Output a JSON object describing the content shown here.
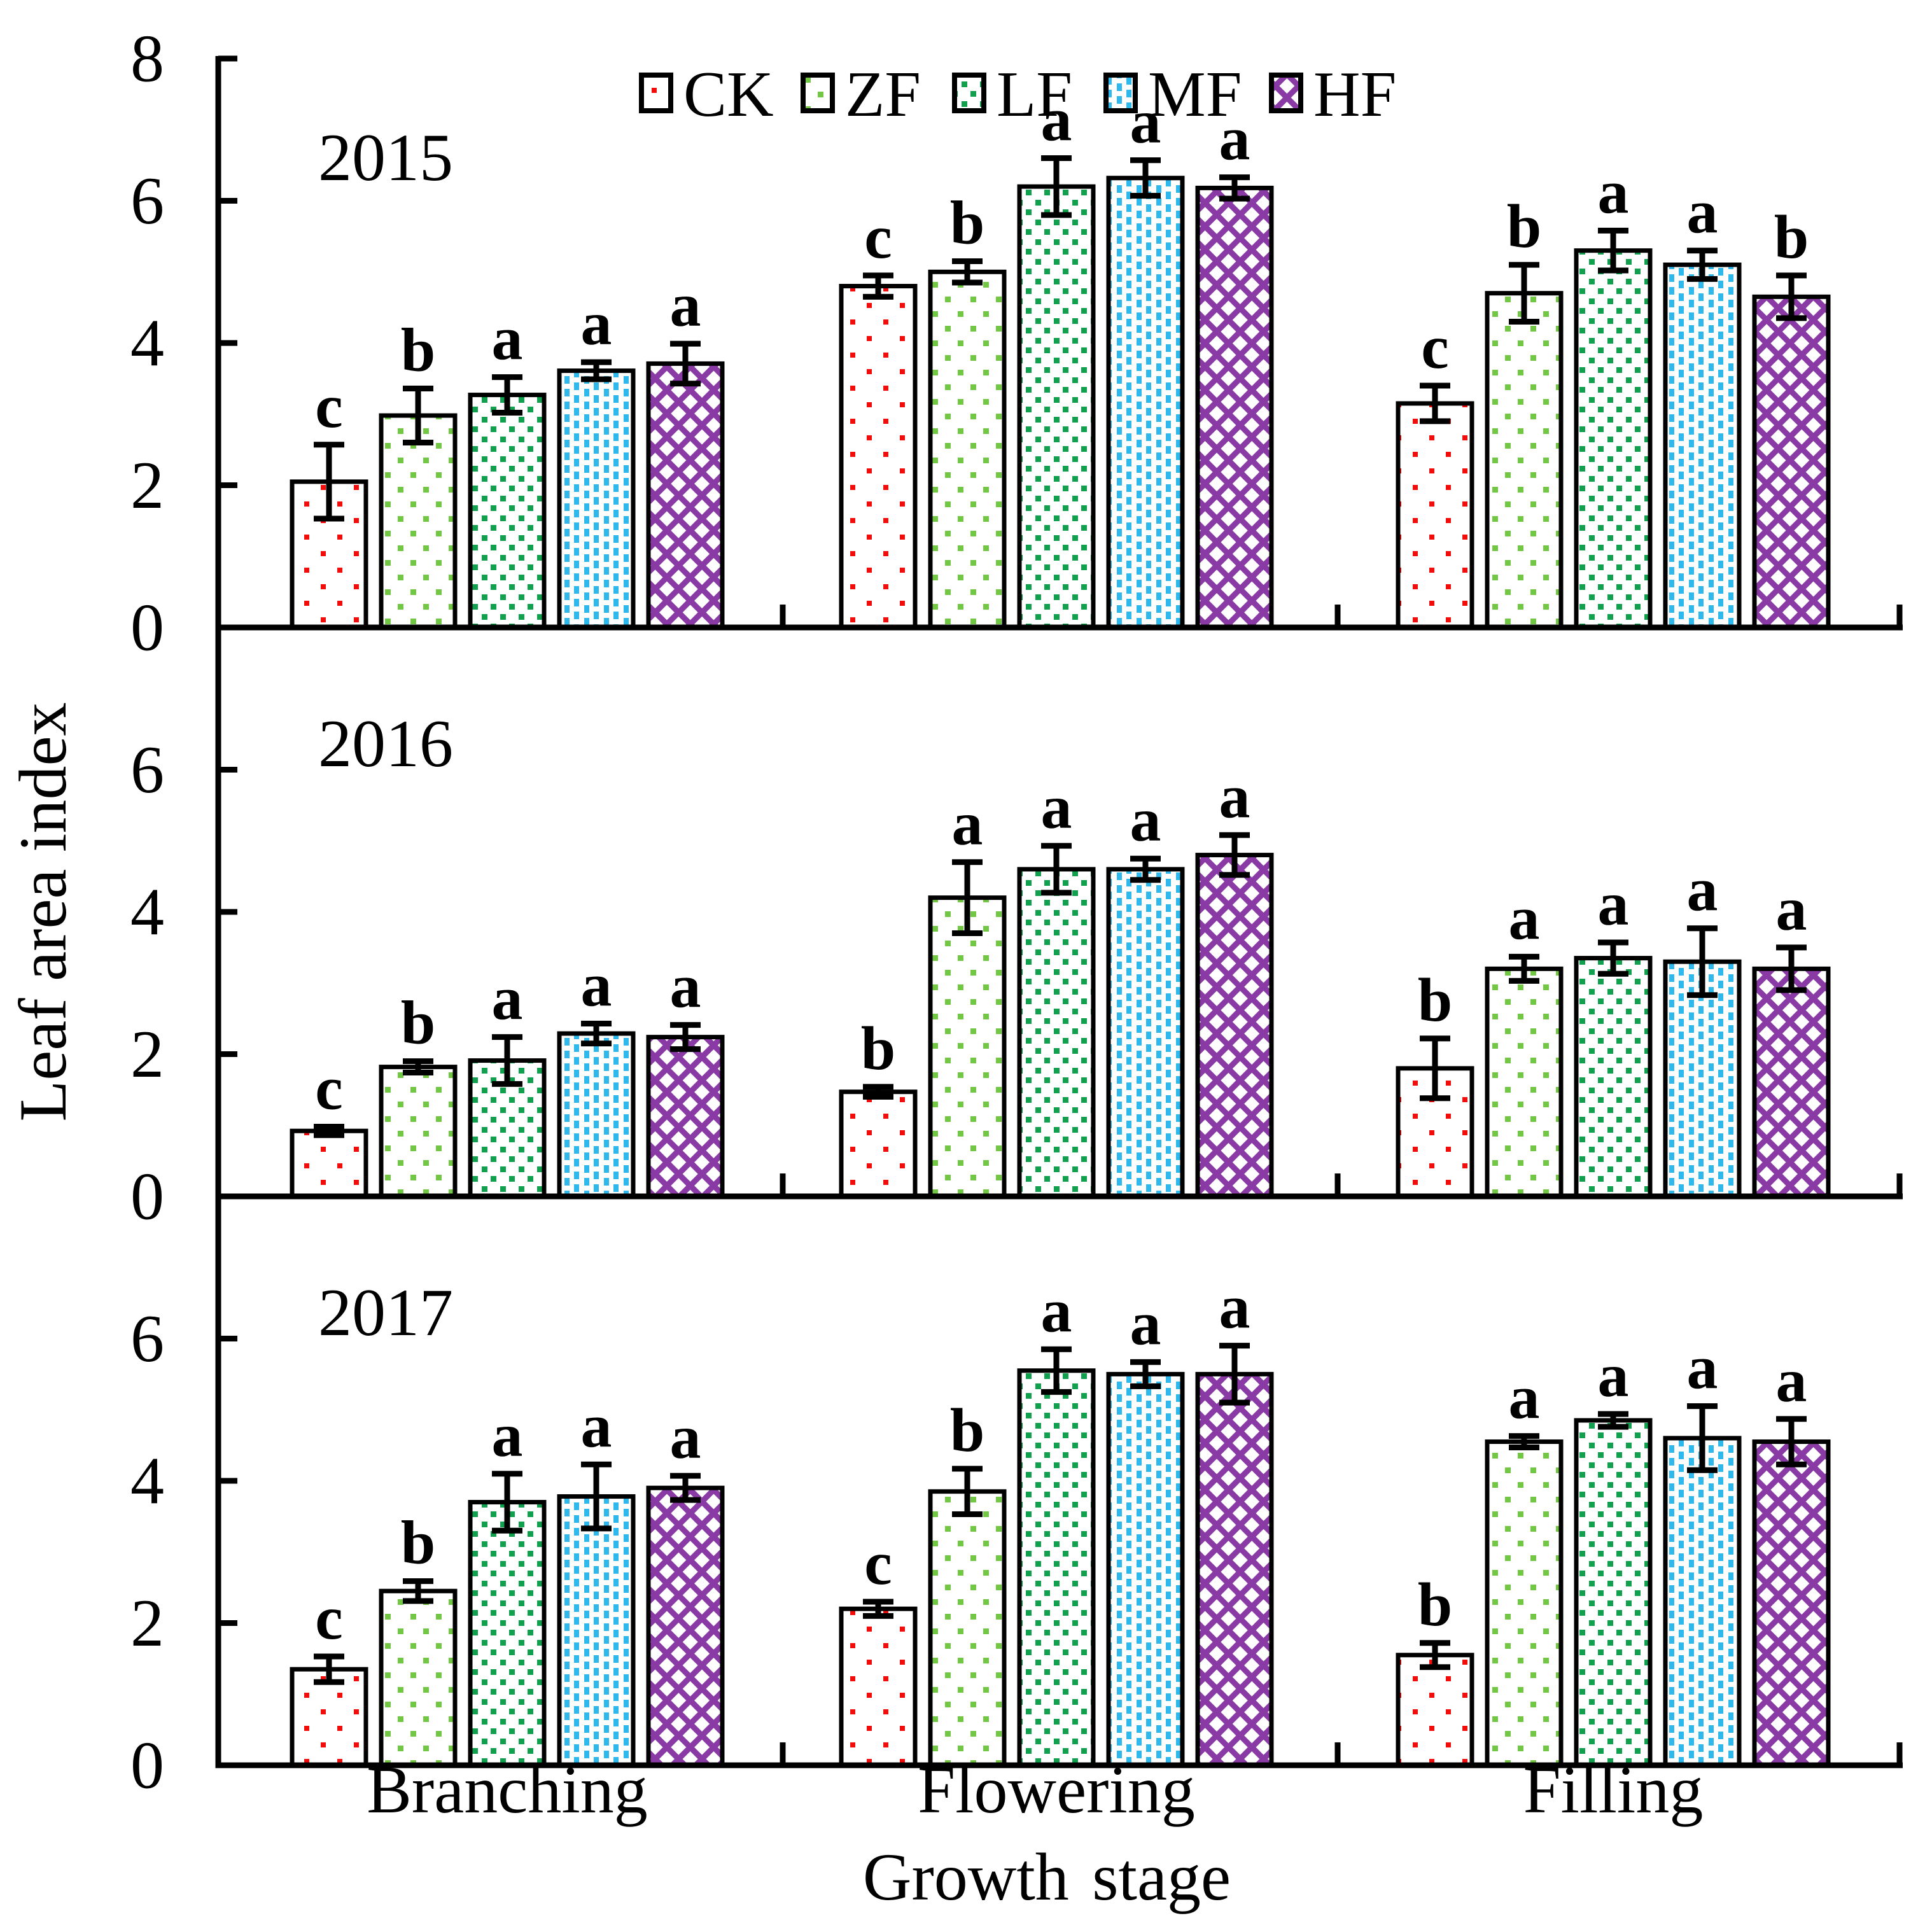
{
  "figure": {
    "background": "#ffffff",
    "ink": "#000000"
  },
  "axes": {
    "y_title": "Leaf area index",
    "x_title": "Growth  stage",
    "stage_labels": [
      "Branching",
      "Flowering",
      "Filling"
    ]
  },
  "chart_data": {
    "type": "bar",
    "title": "",
    "xlabel": "Growth stage",
    "ylabel": "Leaf area index",
    "categories": [
      "Branching",
      "Flowering",
      "Filling"
    ],
    "legend_position": "top-inside",
    "grid": false,
    "treatments": [
      {
        "name": "CK",
        "color": "#f20d0d",
        "pattern": "sparse-red-dots"
      },
      {
        "name": "ZF",
        "color": "#72c845",
        "pattern": "light-green-dots"
      },
      {
        "name": "LF",
        "color": "#11a04d",
        "pattern": "dense-green-dots"
      },
      {
        "name": "MF",
        "color": "#2fb8ec",
        "pattern": "blue-vertical-dashes"
      },
      {
        "name": "HF",
        "color": "#8a3aa5",
        "pattern": "purple-diagonal-weave"
      }
    ],
    "panels": [
      {
        "year": "2015",
        "ylim": [
          0,
          8
        ],
        "yticks": [
          0,
          2,
          4,
          6,
          8
        ],
        "series": [
          {
            "category": "Branching",
            "values": [
              2.05,
              2.98,
              3.27,
              3.61,
              3.71
            ],
            "errors": [
              0.52,
              0.38,
              0.25,
              0.12,
              0.28
            ],
            "letters": [
              "c",
              "b",
              "a",
              "a",
              "a"
            ]
          },
          {
            "category": "Flowering",
            "values": [
              4.8,
              5.0,
              6.2,
              6.32,
              6.18
            ],
            "errors": [
              0.15,
              0.15,
              0.4,
              0.25,
              0.15
            ],
            "letters": [
              "c",
              "b",
              "a",
              "a",
              "a"
            ]
          },
          {
            "category": "Filling",
            "values": [
              3.15,
              4.7,
              5.3,
              5.1,
              4.65
            ],
            "errors": [
              0.25,
              0.4,
              0.28,
              0.2,
              0.3
            ],
            "letters": [
              "c",
              "b",
              "a",
              "a",
              "b"
            ]
          }
        ]
      },
      {
        "year": "2016",
        "ylim": [
          0,
          8
        ],
        "yticks": [
          0,
          2,
          4,
          6
        ],
        "series": [
          {
            "category": "Branching",
            "values": [
              0.92,
              1.82,
              1.91,
              2.29,
              2.24
            ],
            "errors": [
              0.06,
              0.08,
              0.33,
              0.14,
              0.17
            ],
            "letters": [
              "c",
              "b",
              "a",
              "a",
              "a"
            ]
          },
          {
            "category": "Flowering",
            "values": [
              1.47,
              4.2,
              4.6,
              4.6,
              4.8
            ],
            "errors": [
              0.07,
              0.5,
              0.33,
              0.15,
              0.28
            ],
            "letters": [
              "b",
              "a",
              "a",
              "a",
              "a"
            ]
          },
          {
            "category": "Filling",
            "values": [
              1.8,
              3.2,
              3.35,
              3.3,
              3.2
            ],
            "errors": [
              0.42,
              0.17,
              0.22,
              0.47,
              0.3
            ],
            "letters": [
              "b",
              "a",
              "a",
              "a",
              "a"
            ]
          }
        ]
      },
      {
        "year": "2017",
        "ylim": [
          0,
          8
        ],
        "yticks": [
          0,
          2,
          4,
          6
        ],
        "series": [
          {
            "category": "Branching",
            "values": [
              1.35,
              2.45,
              3.7,
              3.78,
              3.9
            ],
            "errors": [
              0.18,
              0.14,
              0.4,
              0.45,
              0.17
            ],
            "letters": [
              "c",
              "b",
              "a",
              "a",
              "a"
            ]
          },
          {
            "category": "Flowering",
            "values": [
              2.2,
              3.85,
              5.55,
              5.5,
              5.5
            ],
            "errors": [
              0.1,
              0.32,
              0.3,
              0.17,
              0.4
            ],
            "letters": [
              "c",
              "b",
              "a",
              "a",
              "a"
            ]
          },
          {
            "category": "Filling",
            "values": [
              1.55,
              4.55,
              4.85,
              4.6,
              4.55
            ],
            "errors": [
              0.17,
              0.08,
              0.09,
              0.45,
              0.32
            ],
            "letters": [
              "b",
              "a",
              "a",
              "a",
              "a"
            ]
          }
        ]
      }
    ],
    "legend": {
      "items": [
        "CK",
        "ZF",
        "LF",
        "MF",
        "HF"
      ]
    }
  }
}
